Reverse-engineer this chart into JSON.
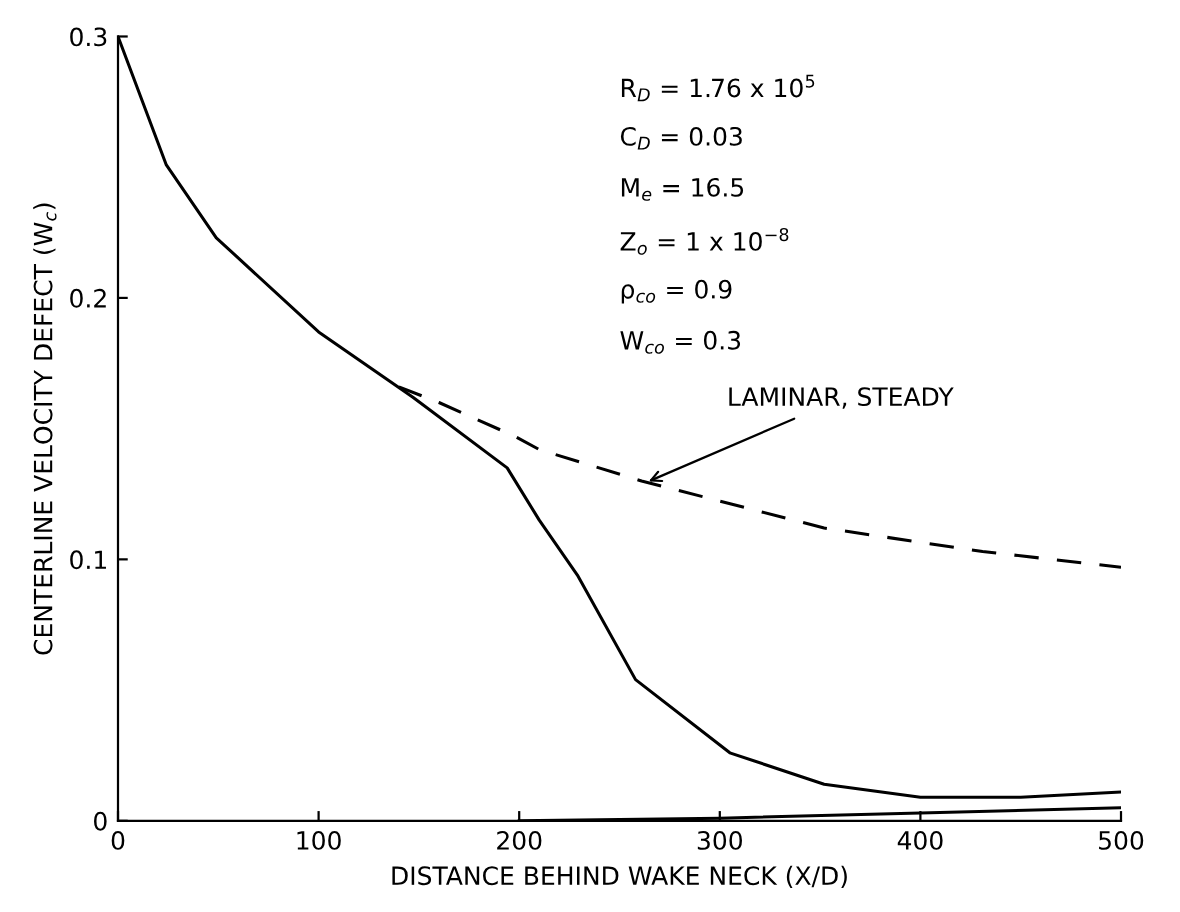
{
  "chart_data": {
    "type": "line",
    "xlabel": "DISTANCE BEHIND WAKE NECK (X/D)",
    "ylabel": "CENTERLINE VELOCITY DEFECT (W$_{c}$)",
    "series": [
      {
        "color": "#000000",
        "line_style": "solid",
        "x": [
          0,
          24,
          49,
          100,
          147,
          194,
          210,
          229,
          258,
          305,
          352,
          400,
          450,
          500
        ],
        "values": [
          0.3,
          0.251,
          0.223,
          0.187,
          0.162,
          0.135,
          0.115,
          0.094,
          0.054,
          0.026,
          0.014,
          0.009,
          0.009,
          0.011
        ]
      },
      {
        "color": "#000000",
        "line_style": "dashed",
        "x": [
          140,
          160,
          198,
          210,
          261,
          352,
          431,
          500
        ],
        "values": [
          0.166,
          0.16,
          0.147,
          0.142,
          0.13,
          0.112,
          0.103,
          0.097
        ]
      },
      {
        "color": "#000000",
        "line_style": "solid",
        "x": [
          200,
          300,
          400,
          500
        ],
        "values": [
          0,
          0.001,
          0.003,
          0.005
        ]
      }
    ],
    "xlim": [
      0,
      500
    ],
    "ylim": [
      0,
      0.3
    ],
    "xticks": [
      0,
      100,
      200,
      300,
      400,
      500
    ],
    "yticks": [
      0,
      0.1,
      0.2,
      0.3
    ],
    "grid": false,
    "legend": false,
    "annotations": [
      "R$_{D}$ = 1.76 x 10$^{5}$",
      "C$_{D}$ = 0.03",
      "M$_{e}$ = 16.5",
      "Z$_{o}$ = 1 x 10$^{−8}$",
      "ρ$_{co}$ = 0.9",
      "W$_{co}$ = 0.3",
      {
        "text": "LAMINAR, STEADY",
        "x": 262,
        "y": 0.129
      }
    ]
  }
}
